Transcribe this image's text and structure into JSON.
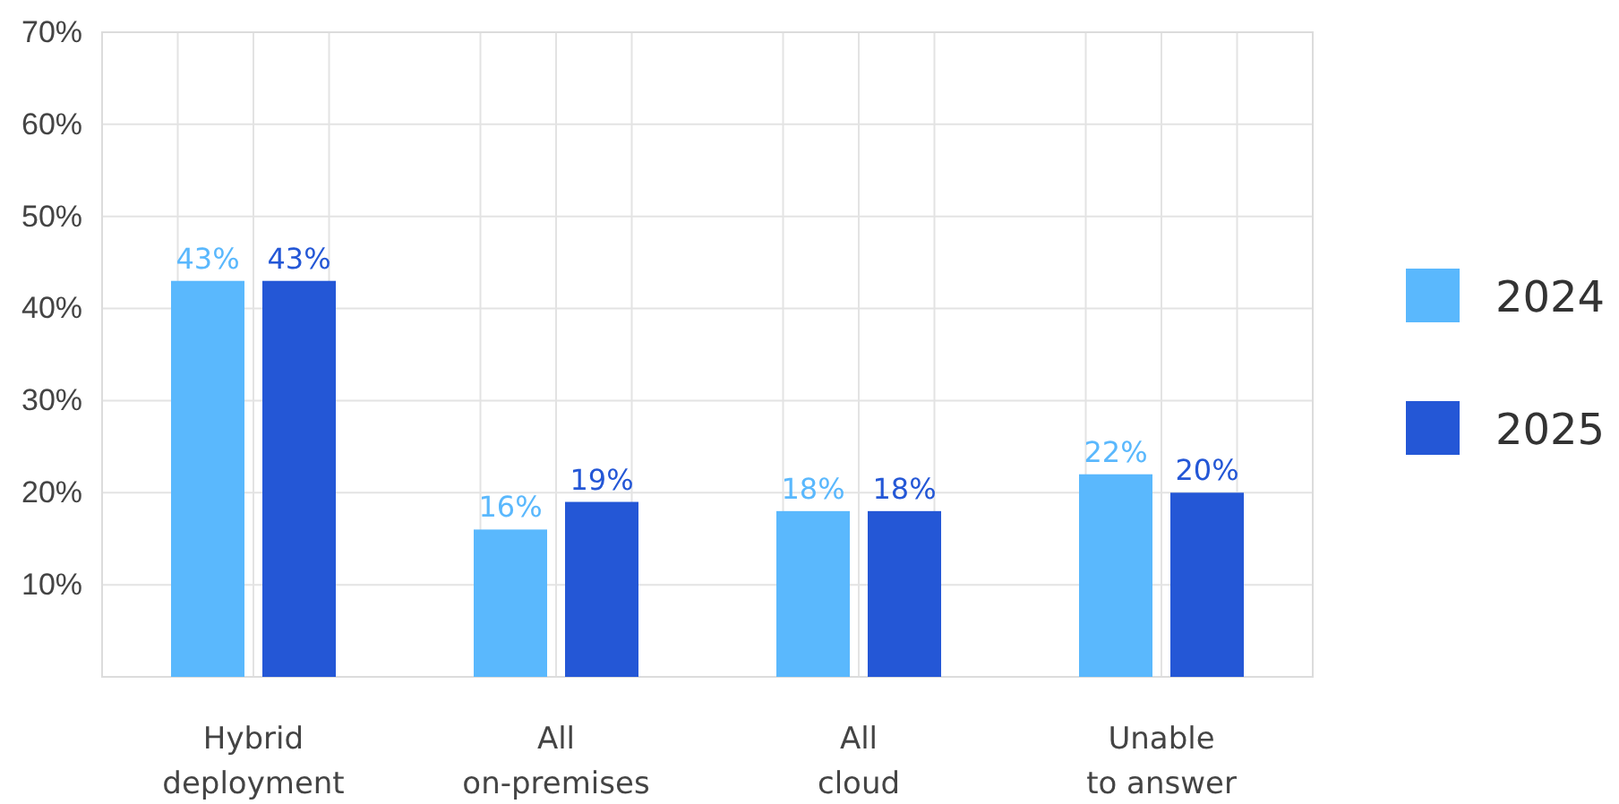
{
  "chart_data": {
    "type": "bar",
    "categories": [
      "Hybrid deployment",
      "All on-premises",
      "All cloud",
      "Unable to answer"
    ],
    "series": [
      {
        "name": "2024",
        "color": "#5ab8fd",
        "values": [
          43,
          16,
          18,
          22
        ],
        "value_labels": [
          "43%",
          "16%",
          "18%",
          "22%"
        ]
      },
      {
        "name": "2025",
        "color": "#2457d6",
        "values": [
          43,
          19,
          18,
          20
        ],
        "value_labels": [
          "43%",
          "19%",
          "18%",
          "20%"
        ]
      }
    ],
    "ylim": [
      0,
      70
    ],
    "yticks": [
      {
        "value": 10,
        "label": "10%"
      },
      {
        "value": 20,
        "label": "20%"
      },
      {
        "value": 30,
        "label": "30%"
      },
      {
        "value": 40,
        "label": "40%"
      },
      {
        "value": 50,
        "label": "50%"
      },
      {
        "value": 60,
        "label": "60%"
      },
      {
        "value": 70,
        "label": "70%"
      }
    ],
    "grid": true,
    "legend": "right"
  }
}
